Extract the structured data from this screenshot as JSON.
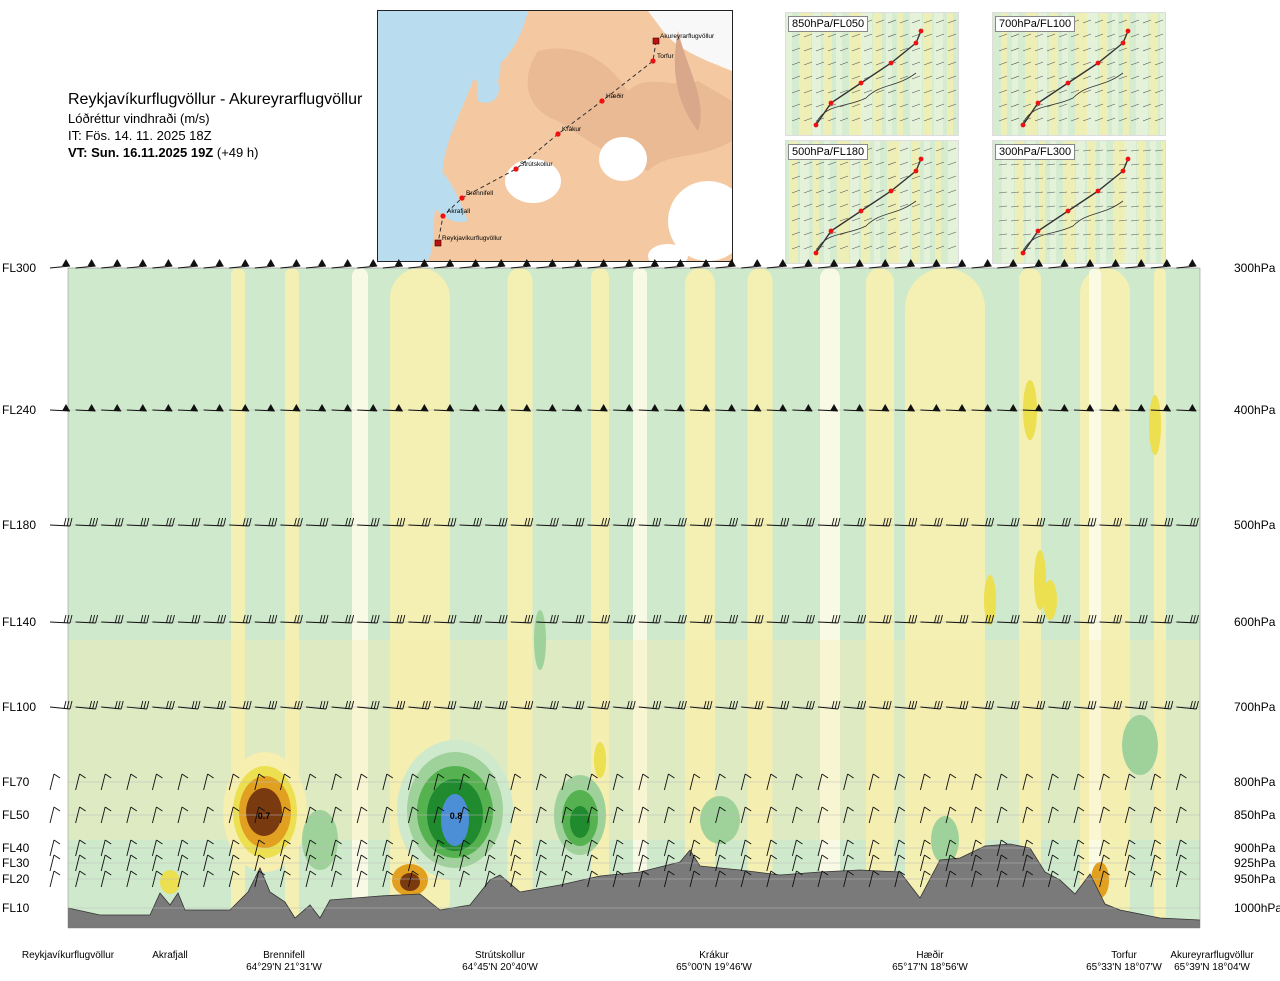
{
  "header": {
    "title": "Reykjavíkurflugvöllur - Akureyrarflugvöllur",
    "subtitle": "Lóðréttur vindhraði (m/s)",
    "it": "IT: Fös. 14. 11. 2025 18Z",
    "vt": "VT: Sun. 16.11.2025 19Z",
    "vt_offset": "(+49 h)"
  },
  "route_map": {
    "points": [
      {
        "name": "Akureyrarflugvöllur",
        "kind": "airport"
      },
      {
        "name": "Torfur",
        "kind": "waypoint"
      },
      {
        "name": "Hæðir",
        "kind": "waypoint"
      },
      {
        "name": "Krákur",
        "kind": "waypoint"
      },
      {
        "name": "Strútskollur",
        "kind": "waypoint"
      },
      {
        "name": "Brennifell",
        "kind": "waypoint"
      },
      {
        "name": "Akrafjall",
        "kind": "waypoint"
      },
      {
        "name": "Reykjavíkurflugvöllur",
        "kind": "airport"
      }
    ]
  },
  "mini_panels": [
    {
      "label": "850hPa/FL050"
    },
    {
      "label": "700hPa/FL100"
    },
    {
      "label": "500hPa/FL180"
    },
    {
      "label": "300hPa/FL300"
    }
  ],
  "levels": [
    {
      "fl": "FL300",
      "hpa": "300hPa"
    },
    {
      "fl": "FL240",
      "hpa": "400hPa"
    },
    {
      "fl": "FL180",
      "hpa": "500hPa"
    },
    {
      "fl": "FL140",
      "hpa": "600hPa"
    },
    {
      "fl": "FL100",
      "hpa": "700hPa"
    },
    {
      "fl": "FL70",
      "hpa": "800hPa"
    },
    {
      "fl": "FL50",
      "hpa": "850hPa"
    },
    {
      "fl": "FL40",
      "hpa": "900hPa"
    },
    {
      "fl": "FL30",
      "hpa": "925hPa"
    },
    {
      "fl": "FL20",
      "hpa": "950hPa"
    },
    {
      "fl": "FL10",
      "hpa": "1000hPa"
    }
  ],
  "places": [
    {
      "name": "Reykjavíkurflugvöllur",
      "coord": ""
    },
    {
      "name": "Akrafjall",
      "coord": ""
    },
    {
      "name": "Brennifell",
      "coord": "64°29'N 21°31'W"
    },
    {
      "name": "Strútskollur",
      "coord": "64°45'N 20°40'W"
    },
    {
      "name": "Krákur",
      "coord": "65°00'N 19°46'W"
    },
    {
      "name": "Hæðir",
      "coord": "65°17'N 18°56'W"
    },
    {
      "name": "Torfur",
      "coord": "65°33'N 18°07'W"
    },
    {
      "name": "Akureyrarflugvöllur",
      "coord": "65°39'N 18°04'W"
    }
  ],
  "colors": {
    "weak_down": "#cfe9cc",
    "weak_up": "#f6efb0",
    "neutral": "#fbfbe6",
    "green2": "#9fd29a",
    "green3": "#56b250",
    "green4": "#1f8a2e",
    "blue": "#4d8fd6",
    "yellow2": "#ecdf50",
    "orange": "#e2a020",
    "brown": "#7a3a10",
    "terrain": "#7a7a7a"
  },
  "chart_data": {
    "type": "heatmap",
    "variable": "vertical wind speed (m/s)",
    "y_levels_hPa": [
      300,
      400,
      500,
      600,
      700,
      800,
      850,
      900,
      925,
      950,
      1000
    ],
    "annotated_values": [
      {
        "location": "Brennifell",
        "level_hPa": 850,
        "value": 0.7
      },
      {
        "location": "Strútskollur",
        "level_hPa": 850,
        "value": 0.8
      }
    ],
    "wind_barbs": "plotted at each pressure level along the route",
    "terrain": "grey profile along the route"
  }
}
